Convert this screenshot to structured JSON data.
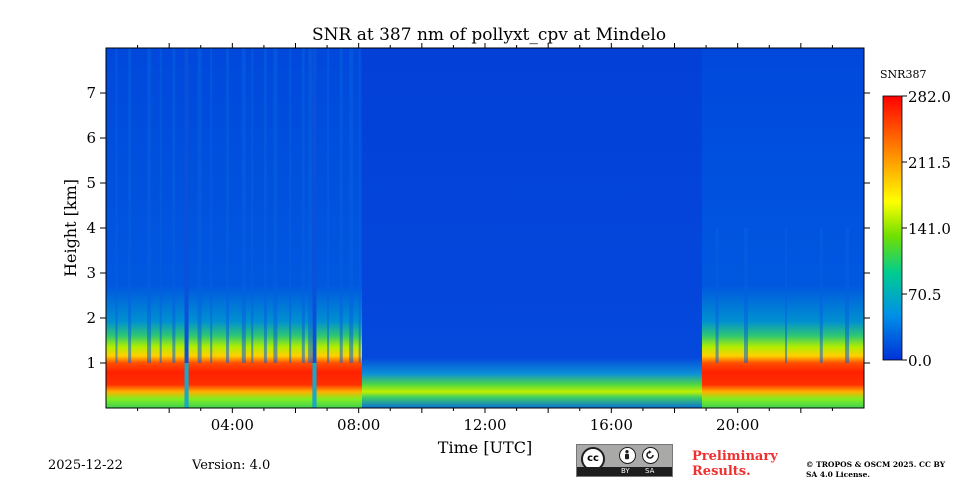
{
  "chart_data": {
    "type": "heatmap",
    "title": "SNR at 387 nm of pollyxt_cpv at Mindelo",
    "xlabel": "Time [UTC]",
    "ylabel": "Height [km]",
    "xlim": [
      0,
      24
    ],
    "ylim": [
      0,
      8
    ],
    "x_tick_values": [
      4,
      8,
      12,
      16,
      20
    ],
    "x_tick_labels": [
      "04:00",
      "08:00",
      "12:00",
      "16:00",
      "20:00"
    ],
    "y_tick_values": [
      1,
      2,
      3,
      4,
      5,
      6,
      7
    ],
    "y_tick_labels": [
      "1",
      "2",
      "3",
      "4",
      "5",
      "6",
      "7"
    ],
    "colorbar": {
      "label": "SNR387",
      "min": 0.0,
      "max": 282.0,
      "tick_values": [
        0.0,
        70.5,
        141.0,
        211.5,
        282.0
      ],
      "tick_labels": [
        "0.0",
        "70.5",
        "141.0",
        "211.5",
        "282.0"
      ],
      "colormap": [
        "#0030d8",
        "#0096e0",
        "#00cc90",
        "#80e000",
        "#ffff00",
        "#ff9000",
        "#ff0000"
      ]
    },
    "features": {
      "high_snr_layer_km": [
        0.15,
        0.75
      ],
      "high_snr_periods_utc": [
        [
          0,
          8.3
        ],
        [
          19,
          24
        ]
      ],
      "low_snr_daytime_utc": [
        8.3,
        19
      ],
      "data_gaps_utc": [
        2.55,
        6.6
      ]
    }
  },
  "footer": {
    "date": "2025-12-22",
    "version": "Version: 4.0",
    "preliminary": "Preliminary Results.",
    "copyright": "© TROPOS & OSCM 2025. CC BY SA 4.0 License."
  },
  "license_badge": {
    "cc": "cc",
    "by": "BY",
    "sa": "SA"
  }
}
